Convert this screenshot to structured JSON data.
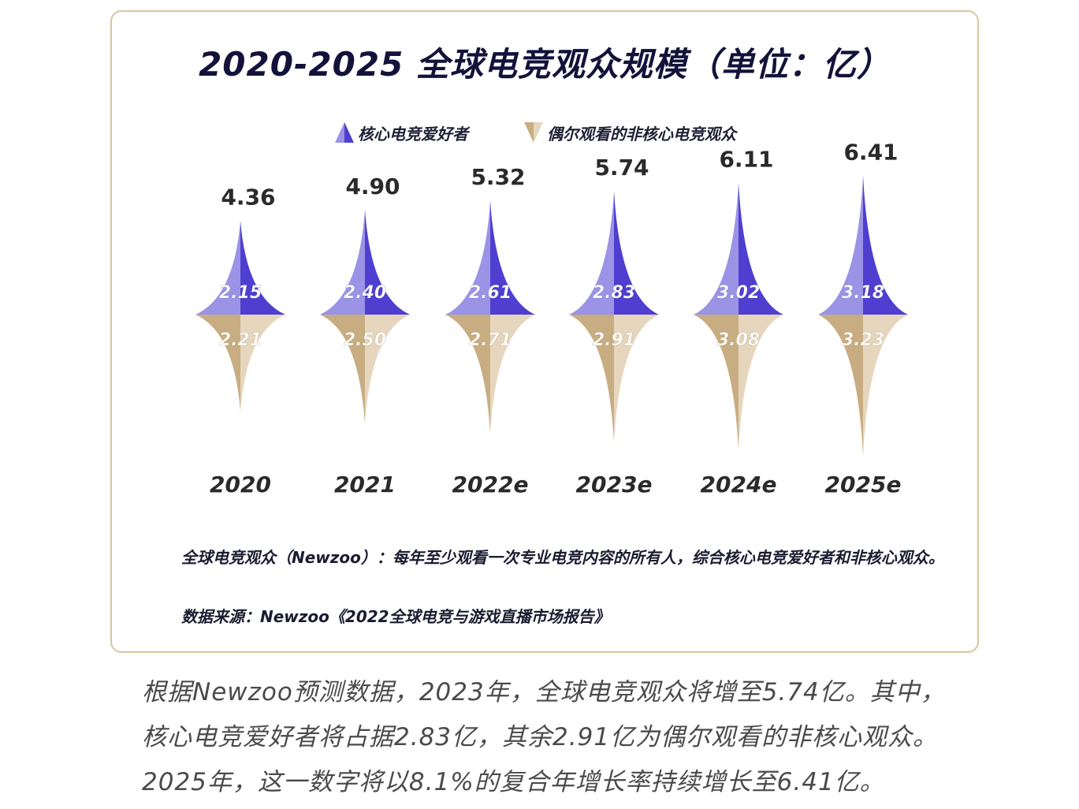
{
  "chart_data": {
    "type": "bar",
    "title": "2020-2025 全球电竞观众规模（单位：亿）",
    "categories": [
      "2020",
      "2021",
      "2022e",
      "2023e",
      "2024e",
      "2025e"
    ],
    "totals": [
      "4.36",
      "4.90",
      "5.32",
      "5.74",
      "6.11",
      "6.41"
    ],
    "series": [
      {
        "name": "核心电竞爱好者",
        "values": [
          2.15,
          2.4,
          2.61,
          2.83,
          3.02,
          3.18
        ],
        "labels": [
          "2.15",
          "2.40",
          "2.61",
          "2.83",
          "3.02",
          "3.18"
        ],
        "color_light": "#9a93e6",
        "color_dark": "#4f3fd0"
      },
      {
        "name": "偶尔观看的非核心电竞观众",
        "values": [
          2.21,
          2.5,
          2.71,
          2.91,
          3.08,
          3.23
        ],
        "labels": [
          "2.21",
          "2.50",
          "2.71",
          "2.91",
          "3.08",
          "3.23"
        ],
        "color_light": "#e6d6bd",
        "color_dark": "#c8ad82"
      }
    ],
    "stacked": true,
    "grid": false,
    "legend_position": "top"
  },
  "notes": {
    "definition": "全球电竞观众（Newzoo）：每年至少观看一次专业电竞内容的所有人，综合核心电竞爱好者和非核心观众。",
    "source": "数据来源：Newzoo《2022全球电竞与游戏直播市场报告》"
  },
  "caption": "根据Newzoo预测数据，2023年，全球电竞观众将增至5.74亿。其中，核心电竞爱好者将占据2.83亿，其余2.91亿为偶尔观看的非核心观众。2025年，这一数字将以8.1%的复合年增长率持续增长至6.41亿。",
  "colors": {
    "title": "#12123a",
    "border": "#d8c6a1",
    "label_dark": "#2a2a2a"
  }
}
